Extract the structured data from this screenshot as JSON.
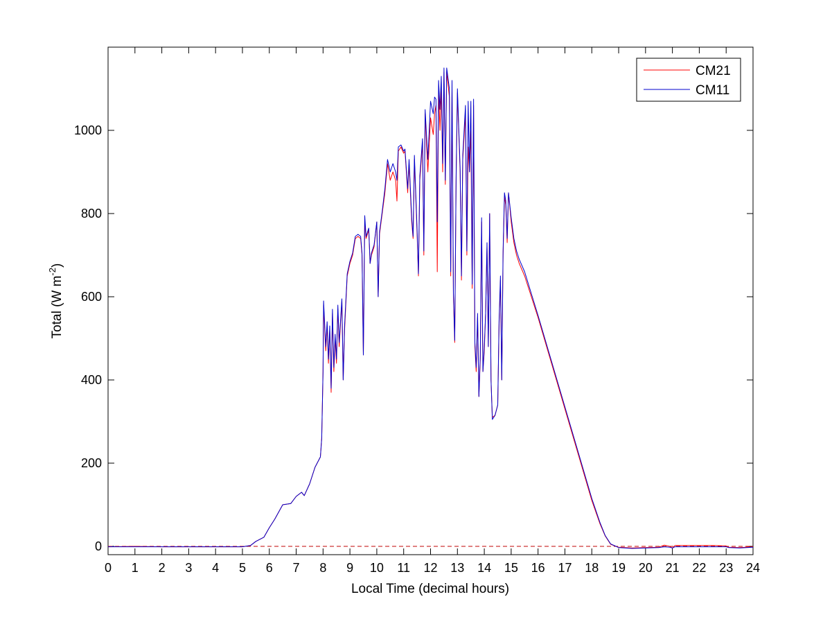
{
  "chart_data": {
    "type": "line",
    "title": "",
    "xlabel": "Local Time (decimal hours)",
    "ylabel": {
      "prefix": "Total (W m",
      "superscript": "-2",
      "suffix": ")"
    },
    "xlim": [
      0,
      24
    ],
    "ylim": [
      -20,
      1200
    ],
    "xticks": [
      0,
      1,
      2,
      3,
      4,
      5,
      6,
      7,
      8,
      9,
      10,
      11,
      12,
      13,
      14,
      15,
      16,
      17,
      18,
      19,
      20,
      21,
      22,
      23,
      24
    ],
    "yticks": [
      0,
      200,
      400,
      600,
      800,
      1000
    ],
    "grid": false,
    "legend_position": "top-right",
    "reference_line": {
      "y": 0,
      "style": "dashed",
      "color": "#c00000"
    },
    "series": [
      {
        "name": "CM21",
        "color": "#ff0000",
        "points": [
          [
            0,
            -1
          ],
          [
            1,
            0
          ],
          [
            2,
            -1
          ],
          [
            3,
            -1
          ],
          [
            4,
            -1
          ],
          [
            5,
            -1
          ],
          [
            5.3,
            2
          ],
          [
            5.5,
            12
          ],
          [
            5.8,
            22
          ],
          [
            6.0,
            45
          ],
          [
            6.2,
            65
          ],
          [
            6.5,
            100
          ],
          [
            6.8,
            103
          ],
          [
            7.0,
            120
          ],
          [
            7.2,
            130
          ],
          [
            7.3,
            122
          ],
          [
            7.5,
            150
          ],
          [
            7.7,
            190
          ],
          [
            7.9,
            215
          ],
          [
            7.95,
            260
          ],
          [
            8.0,
            420
          ],
          [
            8.02,
            580
          ],
          [
            8.1,
            470
          ],
          [
            8.15,
            530
          ],
          [
            8.2,
            440
          ],
          [
            8.25,
            520
          ],
          [
            8.3,
            370
          ],
          [
            8.35,
            560
          ],
          [
            8.4,
            420
          ],
          [
            8.45,
            500
          ],
          [
            8.5,
            440
          ],
          [
            8.55,
            570
          ],
          [
            8.6,
            480
          ],
          [
            8.7,
            590
          ],
          [
            8.75,
            400
          ],
          [
            8.8,
            520
          ],
          [
            8.9,
            650
          ],
          [
            9.0,
            680
          ],
          [
            9.1,
            700
          ],
          [
            9.2,
            740
          ],
          [
            9.3,
            745
          ],
          [
            9.4,
            740
          ],
          [
            9.45,
            700
          ],
          [
            9.5,
            460
          ],
          [
            9.55,
            780
          ],
          [
            9.6,
            740
          ],
          [
            9.7,
            760
          ],
          [
            9.75,
            680
          ],
          [
            9.8,
            700
          ],
          [
            9.9,
            720
          ],
          [
            10.0,
            780
          ],
          [
            10.05,
            600
          ],
          [
            10.1,
            750
          ],
          [
            10.2,
            800
          ],
          [
            10.3,
            850
          ],
          [
            10.4,
            920
          ],
          [
            10.5,
            880
          ],
          [
            10.6,
            900
          ],
          [
            10.7,
            880
          ],
          [
            10.75,
            830
          ],
          [
            10.8,
            950
          ],
          [
            10.9,
            960
          ],
          [
            11.0,
            945
          ],
          [
            11.05,
            950
          ],
          [
            11.15,
            850
          ],
          [
            11.2,
            920
          ],
          [
            11.3,
            780
          ],
          [
            11.35,
            740
          ],
          [
            11.4,
            930
          ],
          [
            11.5,
            750
          ],
          [
            11.55,
            650
          ],
          [
            11.6,
            880
          ],
          [
            11.7,
            970
          ],
          [
            11.75,
            700
          ],
          [
            11.8,
            1040
          ],
          [
            11.9,
            900
          ],
          [
            12.0,
            1030
          ],
          [
            12.1,
            990
          ],
          [
            12.15,
            1040
          ],
          [
            12.2,
            1060
          ],
          [
            12.25,
            660
          ],
          [
            12.3,
            1100
          ],
          [
            12.35,
            1000
          ],
          [
            12.4,
            1100
          ],
          [
            12.45,
            900
          ],
          [
            12.5,
            1140
          ],
          [
            12.55,
            870
          ],
          [
            12.6,
            1140
          ],
          [
            12.7,
            1080
          ],
          [
            12.75,
            650
          ],
          [
            12.8,
            1100
          ],
          [
            12.85,
            600
          ],
          [
            12.9,
            490
          ],
          [
            12.95,
            880
          ],
          [
            13.0,
            1090
          ],
          [
            13.1,
            900
          ],
          [
            13.15,
            640
          ],
          [
            13.2,
            930
          ],
          [
            13.3,
            1040
          ],
          [
            13.35,
            700
          ],
          [
            13.4,
            960
          ],
          [
            13.45,
            900
          ],
          [
            13.5,
            1000
          ],
          [
            13.55,
            620
          ],
          [
            13.6,
            1060
          ],
          [
            13.65,
            480
          ],
          [
            13.7,
            420
          ],
          [
            13.75,
            550
          ],
          [
            13.8,
            360
          ],
          [
            13.85,
            450
          ],
          [
            13.9,
            780
          ],
          [
            13.95,
            420
          ],
          [
            14.0,
            470
          ],
          [
            14.05,
            560
          ],
          [
            14.1,
            720
          ],
          [
            14.15,
            480
          ],
          [
            14.2,
            800
          ],
          [
            14.25,
            400
          ],
          [
            14.3,
            310
          ],
          [
            14.4,
            315
          ],
          [
            14.5,
            340
          ],
          [
            14.55,
            530
          ],
          [
            14.6,
            640
          ],
          [
            14.65,
            400
          ],
          [
            14.7,
            700
          ],
          [
            14.75,
            840
          ],
          [
            14.8,
            820
          ],
          [
            14.85,
            730
          ],
          [
            14.9,
            850
          ],
          [
            15.0,
            780
          ],
          [
            15.1,
            730
          ],
          [
            15.2,
            700
          ],
          [
            15.3,
            680
          ],
          [
            15.5,
            650
          ],
          [
            16.0,
            550
          ],
          [
            16.5,
            440
          ],
          [
            17.0,
            330
          ],
          [
            17.5,
            220
          ],
          [
            18.0,
            110
          ],
          [
            18.3,
            55
          ],
          [
            18.5,
            25
          ],
          [
            18.7,
            5
          ],
          [
            18.9,
            0
          ],
          [
            19.0,
            -2
          ],
          [
            19.5,
            -4
          ],
          [
            20,
            -3
          ],
          [
            20.5,
            -2
          ],
          [
            20.7,
            3
          ],
          [
            20.9,
            0
          ],
          [
            21.0,
            -4
          ],
          [
            21.1,
            2
          ],
          [
            21.5,
            2
          ],
          [
            22,
            2
          ],
          [
            22.5,
            2
          ],
          [
            23,
            1
          ],
          [
            23.1,
            -2
          ],
          [
            23.5,
            -3
          ],
          [
            24,
            -1
          ]
        ]
      },
      {
        "name": "CM11",
        "color": "#0000cc",
        "points": [
          [
            0,
            -1
          ],
          [
            1,
            -1
          ],
          [
            2,
            -1
          ],
          [
            3,
            -1
          ],
          [
            4,
            -1
          ],
          [
            5,
            -1
          ],
          [
            5.3,
            2
          ],
          [
            5.5,
            12
          ],
          [
            5.8,
            22
          ],
          [
            6.0,
            45
          ],
          [
            6.2,
            65
          ],
          [
            6.5,
            100
          ],
          [
            6.8,
            103
          ],
          [
            7.0,
            120
          ],
          [
            7.2,
            130
          ],
          [
            7.3,
            122
          ],
          [
            7.5,
            150
          ],
          [
            7.7,
            190
          ],
          [
            7.9,
            215
          ],
          [
            7.95,
            260
          ],
          [
            8.0,
            420
          ],
          [
            8.02,
            590
          ],
          [
            8.1,
            480
          ],
          [
            8.15,
            540
          ],
          [
            8.2,
            450
          ],
          [
            8.25,
            530
          ],
          [
            8.3,
            380
          ],
          [
            8.35,
            570
          ],
          [
            8.4,
            430
          ],
          [
            8.45,
            510
          ],
          [
            8.5,
            450
          ],
          [
            8.55,
            580
          ],
          [
            8.6,
            490
          ],
          [
            8.7,
            595
          ],
          [
            8.75,
            400
          ],
          [
            8.8,
            530
          ],
          [
            8.9,
            655
          ],
          [
            9.0,
            685
          ],
          [
            9.1,
            705
          ],
          [
            9.2,
            745
          ],
          [
            9.3,
            750
          ],
          [
            9.4,
            745
          ],
          [
            9.45,
            705
          ],
          [
            9.5,
            460
          ],
          [
            9.55,
            795
          ],
          [
            9.6,
            745
          ],
          [
            9.7,
            765
          ],
          [
            9.75,
            680
          ],
          [
            9.8,
            705
          ],
          [
            9.9,
            725
          ],
          [
            10.0,
            780
          ],
          [
            10.05,
            600
          ],
          [
            10.1,
            755
          ],
          [
            10.2,
            805
          ],
          [
            10.3,
            860
          ],
          [
            10.4,
            930
          ],
          [
            10.5,
            900
          ],
          [
            10.6,
            920
          ],
          [
            10.7,
            900
          ],
          [
            10.75,
            880
          ],
          [
            10.8,
            960
          ],
          [
            10.9,
            965
          ],
          [
            11.0,
            950
          ],
          [
            11.05,
            955
          ],
          [
            11.15,
            860
          ],
          [
            11.2,
            930
          ],
          [
            11.3,
            790
          ],
          [
            11.35,
            745
          ],
          [
            11.4,
            940
          ],
          [
            11.5,
            760
          ],
          [
            11.55,
            655
          ],
          [
            11.6,
            890
          ],
          [
            11.7,
            980
          ],
          [
            11.75,
            710
          ],
          [
            11.8,
            1050
          ],
          [
            11.9,
            930
          ],
          [
            12.0,
            1070
          ],
          [
            12.1,
            1040
          ],
          [
            12.15,
            1080
          ],
          [
            12.2,
            1075
          ],
          [
            12.25,
            780
          ],
          [
            12.3,
            1120
          ],
          [
            12.35,
            1050
          ],
          [
            12.4,
            1130
          ],
          [
            12.45,
            920
          ],
          [
            12.5,
            1150
          ],
          [
            12.55,
            880
          ],
          [
            12.6,
            1150
          ],
          [
            12.7,
            1100
          ],
          [
            12.75,
            660
          ],
          [
            12.8,
            1120
          ],
          [
            12.85,
            610
          ],
          [
            12.9,
            495
          ],
          [
            12.95,
            890
          ],
          [
            13.0,
            1100
          ],
          [
            13.1,
            910
          ],
          [
            13.15,
            650
          ],
          [
            13.2,
            940
          ],
          [
            13.3,
            1060
          ],
          [
            13.35,
            710
          ],
          [
            13.4,
            1070
          ],
          [
            13.45,
            900
          ],
          [
            13.5,
            1070
          ],
          [
            13.55,
            630
          ],
          [
            13.6,
            1075
          ],
          [
            13.65,
            490
          ],
          [
            13.7,
            430
          ],
          [
            13.75,
            560
          ],
          [
            13.8,
            360
          ],
          [
            13.85,
            460
          ],
          [
            13.9,
            790
          ],
          [
            13.95,
            420
          ],
          [
            14.0,
            480
          ],
          [
            14.05,
            560
          ],
          [
            14.1,
            730
          ],
          [
            14.15,
            480
          ],
          [
            14.2,
            800
          ],
          [
            14.25,
            400
          ],
          [
            14.3,
            305
          ],
          [
            14.4,
            315
          ],
          [
            14.5,
            340
          ],
          [
            14.55,
            540
          ],
          [
            14.6,
            650
          ],
          [
            14.65,
            400
          ],
          [
            14.7,
            710
          ],
          [
            14.75,
            850
          ],
          [
            14.8,
            830
          ],
          [
            14.85,
            740
          ],
          [
            14.9,
            850
          ],
          [
            15.0,
            790
          ],
          [
            15.1,
            740
          ],
          [
            15.2,
            710
          ],
          [
            15.3,
            690
          ],
          [
            15.5,
            660
          ],
          [
            16.0,
            555
          ],
          [
            16.5,
            445
          ],
          [
            17.0,
            335
          ],
          [
            17.5,
            225
          ],
          [
            18.0,
            115
          ],
          [
            18.3,
            58
          ],
          [
            18.5,
            26
          ],
          [
            18.7,
            6
          ],
          [
            18.9,
            0
          ],
          [
            19.0,
            -3
          ],
          [
            19.5,
            -5
          ],
          [
            20,
            -4
          ],
          [
            20.5,
            -3
          ],
          [
            20.7,
            -1
          ],
          [
            20.9,
            -2
          ],
          [
            21.0,
            -4
          ],
          [
            21.1,
            -1
          ],
          [
            21.5,
            -1
          ],
          [
            22,
            -1
          ],
          [
            22.5,
            -1
          ],
          [
            23,
            -1
          ],
          [
            23.1,
            -3
          ],
          [
            23.5,
            -4
          ],
          [
            24,
            -2
          ]
        ]
      }
    ]
  }
}
